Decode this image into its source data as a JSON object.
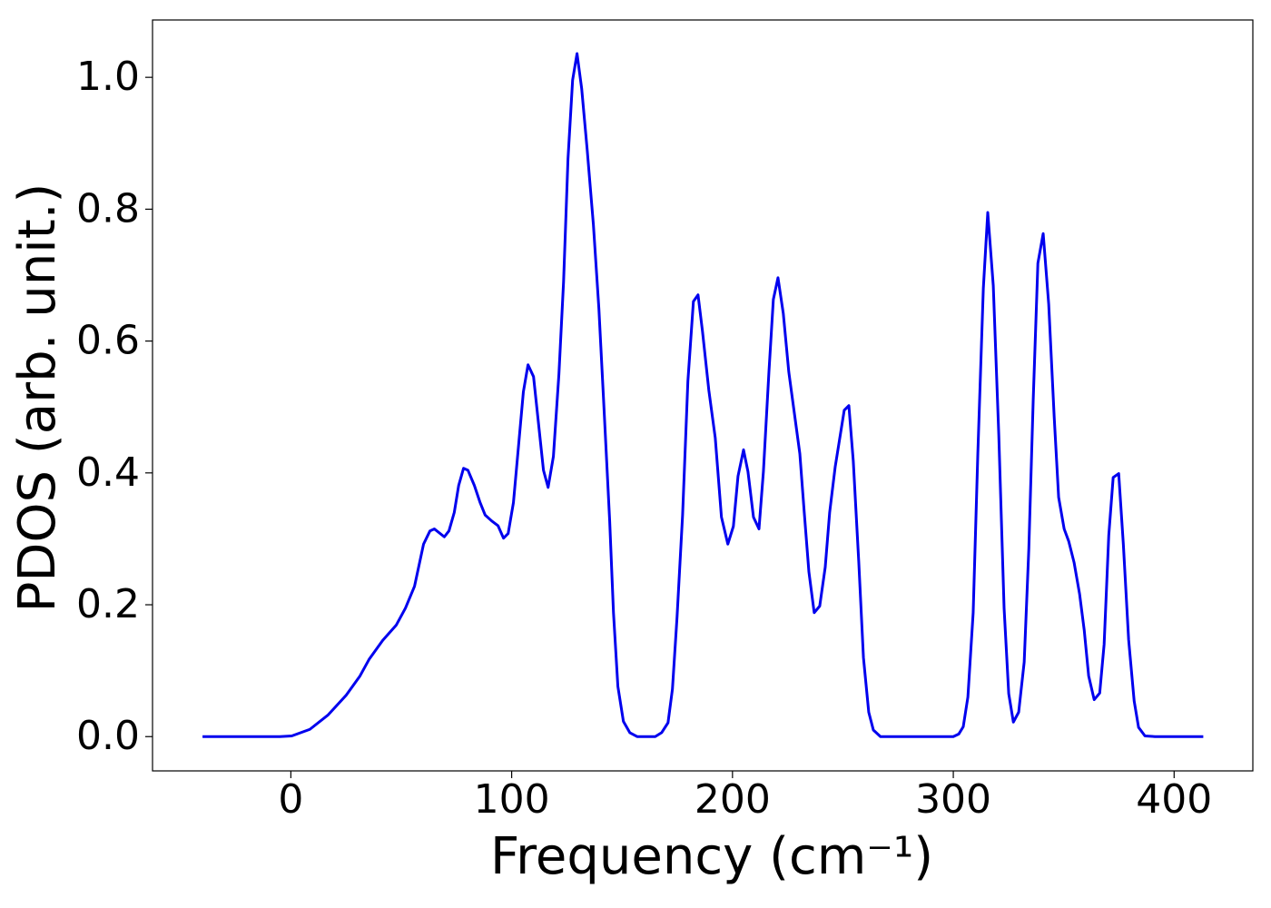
{
  "chart_data": {
    "type": "line",
    "xlabel": "Frequency (cm⁻¹)",
    "ylabel": "PDOS (arb. unit.)",
    "xlim": [
      -62.65,
      435.65
    ],
    "ylim": [
      -0.052,
      1.087
    ],
    "xticks": [
      0,
      100,
      200,
      300,
      400
    ],
    "yticks": [
      {
        "value": 0,
        "label": "0.0"
      },
      {
        "value": 0.2,
        "label": "0.2"
      },
      {
        "value": 0.4,
        "label": "0.4"
      },
      {
        "value": 0.6,
        "label": "0.6"
      },
      {
        "value": 0.8,
        "label": "0.8"
      },
      {
        "value": 1.0,
        "label": "1.0"
      }
    ],
    "grid": false,
    "series": [
      {
        "color": "#0000ee",
        "x": [
          -40,
          -5,
          0.4,
          8.6,
          16.9,
          25.1,
          31.3,
          35.4,
          41.6,
          47.7,
          51.9,
          56,
          60.1,
          63,
          65,
          69.5,
          71.6,
          74,
          76,
          78.2,
          80.2,
          83.1,
          85.6,
          88,
          91,
          93.8,
          96.3,
          98.4,
          100.8,
          105.3,
          107.4,
          109.9,
          114.4,
          116.5,
          118.9,
          121.4,
          123.5,
          125.5,
          127.6,
          129.6,
          131.7,
          134.2,
          137,
          139.5,
          141.6,
          144.4,
          146.1,
          148.1,
          150.6,
          153.5,
          156.8,
          165,
          167.9,
          170.8,
          172.8,
          174.9,
          177.4,
          179.8,
          182.3,
          184.4,
          186.4,
          189.3,
          192.2,
          195,
          197.9,
          200.4,
          202.5,
          205,
          207,
          209.5,
          212,
          214,
          216.5,
          218.5,
          220.6,
          223,
          225.5,
          228,
          230.5,
          232.5,
          234.6,
          237,
          239.5,
          242,
          244,
          246.5,
          250.6,
          252.7,
          254.7,
          257.2,
          259.3,
          261.7,
          263.8,
          267,
          300,
          302.5,
          304.5,
          306.6,
          309,
          311.1,
          313.6,
          315.6,
          318.1,
          320.6,
          323,
          325.1,
          327.2,
          329.6,
          332.1,
          334.2,
          336.2,
          338.3,
          340.7,
          343.2,
          345.7,
          347.7,
          350.2,
          352.3,
          354.7,
          357.2,
          359.3,
          361.3,
          363.8,
          366.3,
          368.3,
          370.4,
          372.4,
          374.9,
          377,
          379.4,
          381.9,
          383.9,
          386.8,
          391.4,
          413.2
        ],
        "values": [
          0,
          0,
          0.001,
          0.011,
          0.033,
          0.063,
          0.092,
          0.117,
          0.146,
          0.169,
          0.195,
          0.228,
          0.292,
          0.312,
          0.315,
          0.303,
          0.312,
          0.34,
          0.381,
          0.407,
          0.404,
          0.381,
          0.356,
          0.336,
          0.327,
          0.32,
          0.301,
          0.308,
          0.355,
          0.523,
          0.564,
          0.546,
          0.404,
          0.378,
          0.425,
          0.55,
          0.69,
          0.876,
          0.996,
          1.036,
          0.983,
          0.89,
          0.777,
          0.649,
          0.512,
          0.326,
          0.188,
          0.076,
          0.023,
          0.006,
          0,
          0,
          0.006,
          0.021,
          0.072,
          0.182,
          0.336,
          0.539,
          0.66,
          0.67,
          0.615,
          0.525,
          0.453,
          0.333,
          0.292,
          0.319,
          0.395,
          0.435,
          0.402,
          0.333,
          0.315,
          0.402,
          0.553,
          0.663,
          0.696,
          0.642,
          0.553,
          0.491,
          0.429,
          0.34,
          0.25,
          0.188,
          0.198,
          0.257,
          0.34,
          0.409,
          0.495,
          0.502,
          0.418,
          0.264,
          0.12,
          0.037,
          0.01,
          0,
          0,
          0.004,
          0.015,
          0.06,
          0.188,
          0.429,
          0.68,
          0.795,
          0.684,
          0.457,
          0.195,
          0.065,
          0.022,
          0.037,
          0.113,
          0.285,
          0.512,
          0.718,
          0.763,
          0.656,
          0.484,
          0.363,
          0.315,
          0.296,
          0.264,
          0.216,
          0.161,
          0.092,
          0.056,
          0.066,
          0.14,
          0.305,
          0.393,
          0.399,
          0.292,
          0.147,
          0.054,
          0.014,
          0.001,
          0,
          0
        ]
      }
    ]
  }
}
